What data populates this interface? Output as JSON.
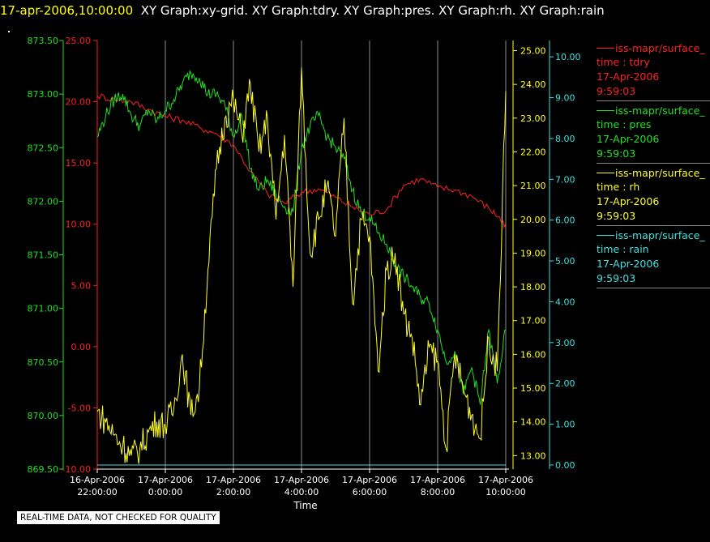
{
  "header": {
    "timestamp": "17-apr-2006,10:00:00",
    "graphs": "XY Graph:xy-grid.  XY Graph:tdry.  XY Graph:pres.  XY Graph:rh.  XY Graph:rain"
  },
  "legend": [
    {
      "name": "iss-mapr/surface_",
      "var": "time : tdry",
      "date": "17-Apr-2006",
      "time": "9:59:03",
      "color": "#ff2020"
    },
    {
      "name": "iss-mapr/surface_",
      "var": "time : pres",
      "date": "17-Apr-2006",
      "time": "9:59:03",
      "color": "#20e020"
    },
    {
      "name": "iss-mapr/surface_",
      "var": "time : rh",
      "date": "17-Apr-2006",
      "time": "9:59:03",
      "color": "#ffff20"
    },
    {
      "name": "iss-mapr/surface_",
      "var": "time : rain",
      "date": "17-Apr-2006",
      "time": "9:59:03",
      "color": "#40e0e0"
    }
  ],
  "footer_note": "REAL-TIME DATA, NOT CHECKED FOR QUALITY",
  "chart_data": {
    "type": "line",
    "xlabel": "Time",
    "x_ticks": [
      {
        "d": "16-Apr-2006",
        "t": "22:00:00"
      },
      {
        "d": "17-Apr-2006",
        "t": "0:00:00"
      },
      {
        "d": "17-Apr-2006",
        "t": "2:00:00"
      },
      {
        "d": "17-Apr-2006",
        "t": "4:00:00"
      },
      {
        "d": "17-Apr-2006",
        "t": "6:00:00"
      },
      {
        "d": "17-Apr-2006",
        "t": "8:00:00"
      },
      {
        "d": "17-Apr-2006",
        "t": "10:00:00"
      }
    ],
    "x_tick_hours": [
      -2,
      0,
      2,
      4,
      6,
      8,
      10
    ],
    "xlim_hours": [
      -2,
      10
    ],
    "grid": "vertical",
    "axes": {
      "pres": {
        "ticks": [
          "869.50",
          "870.00",
          "870.50",
          "871.00",
          "871.50",
          "872.00",
          "872.50",
          "873.00",
          "873.50"
        ],
        "ylim": [
          869.5,
          873.5
        ]
      },
      "tdry": {
        "ticks": [
          "-10.00",
          "-5.00",
          "0.00",
          "5.00",
          "10.00",
          "15.00",
          "20.00",
          "25.00"
        ],
        "ylim": [
          -10,
          25
        ]
      },
      "rh": {
        "ticks": [
          "13.00",
          "14.00",
          "15.00",
          "16.00",
          "17.00",
          "18.00",
          "19.00",
          "20.00",
          "21.00",
          "22.00",
          "23.00",
          "24.00",
          "25.00"
        ],
        "ylim": [
          12.6,
          25.3
        ]
      },
      "rain": {
        "ticks": [
          "0.00",
          "1.00",
          "2.00",
          "3.00",
          "4.00",
          "5.00",
          "6.00",
          "7.00",
          "8.00",
          "9.00",
          "10.00"
        ],
        "ylim": [
          -0.1,
          10.4
        ]
      }
    },
    "series": [
      {
        "key": "tdry",
        "color": "#ff2020",
        "x": [
          -2,
          -1.5,
          -1,
          -0.5,
          0,
          0.5,
          1,
          1.5,
          2,
          2.5,
          3,
          3.5,
          4,
          4.5,
          5,
          5.5,
          6,
          6.5,
          7,
          7.5,
          8,
          8.5,
          9,
          9.5,
          9.8,
          10
        ],
        "y": [
          20.5,
          20.2,
          20,
          19.4,
          18.8,
          18.5,
          17.9,
          17.4,
          16.5,
          14.3,
          12.5,
          11.7,
          12.6,
          12.9,
          12.2,
          11.4,
          10.8,
          11.2,
          13.2,
          13.7,
          13,
          12.8,
          12.3,
          11.3,
          10.6,
          9.6
        ]
      },
      {
        "key": "pres",
        "color": "#20e020",
        "x": [
          -2,
          -1.75,
          -1.5,
          -1.25,
          -1,
          -0.75,
          -0.5,
          -0.25,
          0,
          0.25,
          0.5,
          0.75,
          1,
          1.25,
          1.5,
          1.75,
          2,
          2.25,
          2.5,
          2.75,
          3,
          3.25,
          3.5,
          3.75,
          4,
          4.25,
          4.5,
          4.75,
          5,
          5.25,
          5.5,
          5.75,
          6,
          6.25,
          6.5,
          6.75,
          7,
          7.25,
          7.5,
          7.75,
          8,
          8.25,
          8.5,
          8.75,
          9,
          9.25,
          9.5,
          9.75,
          10
        ],
        "y": [
          872.6,
          872.8,
          872.95,
          873,
          872.8,
          872.7,
          872.85,
          872.75,
          872.85,
          872.95,
          873.1,
          873.2,
          873.15,
          873,
          873,
          872.9,
          872.6,
          872.8,
          872.3,
          872.1,
          872.2,
          872.05,
          871.95,
          871.9,
          872.5,
          872.7,
          872.8,
          872.6,
          872.5,
          872.4,
          872.1,
          871.9,
          871.85,
          871.7,
          871.6,
          871.4,
          871.3,
          871.2,
          871.1,
          871.05,
          870.8,
          870.5,
          870.6,
          870.2,
          870.45,
          870.1,
          870.8,
          870.3,
          870.8
        ]
      },
      {
        "key": "rh",
        "color": "#ffff20",
        "x": [
          -2,
          -1.75,
          -1.5,
          -1.25,
          -1,
          -0.75,
          -0.5,
          -0.25,
          0,
          0.25,
          0.5,
          0.75,
          1,
          1.25,
          1.5,
          1.75,
          2,
          2.25,
          2.5,
          2.75,
          3,
          3.25,
          3.5,
          3.75,
          4,
          4.25,
          4.5,
          4.75,
          5,
          5.25,
          5.5,
          5.75,
          6,
          6.25,
          6.5,
          6.75,
          7,
          7.25,
          7.5,
          7.75,
          8,
          8.25,
          8.5,
          8.75,
          9,
          9.25,
          9.5,
          9.75,
          10
        ],
        "y": [
          14.3,
          14,
          13.6,
          13.3,
          13,
          13.2,
          13.7,
          14,
          13.9,
          14.4,
          16,
          14.2,
          15,
          18.5,
          21.5,
          23,
          23.5,
          22.5,
          24,
          22,
          23,
          20,
          22.5,
          18,
          24.5,
          19,
          20,
          21,
          19.5,
          23,
          17.5,
          20,
          19.5,
          15.5,
          18.5,
          19,
          17.2,
          16.5,
          14.5,
          16.2,
          15.8,
          13.2,
          16,
          15,
          14.2,
          13.5,
          16.5,
          15.5,
          23.8
        ]
      },
      {
        "key": "rain",
        "color": "#40e0e0",
        "x": [
          -2,
          10
        ],
        "y": [
          0,
          0
        ]
      }
    ]
  }
}
